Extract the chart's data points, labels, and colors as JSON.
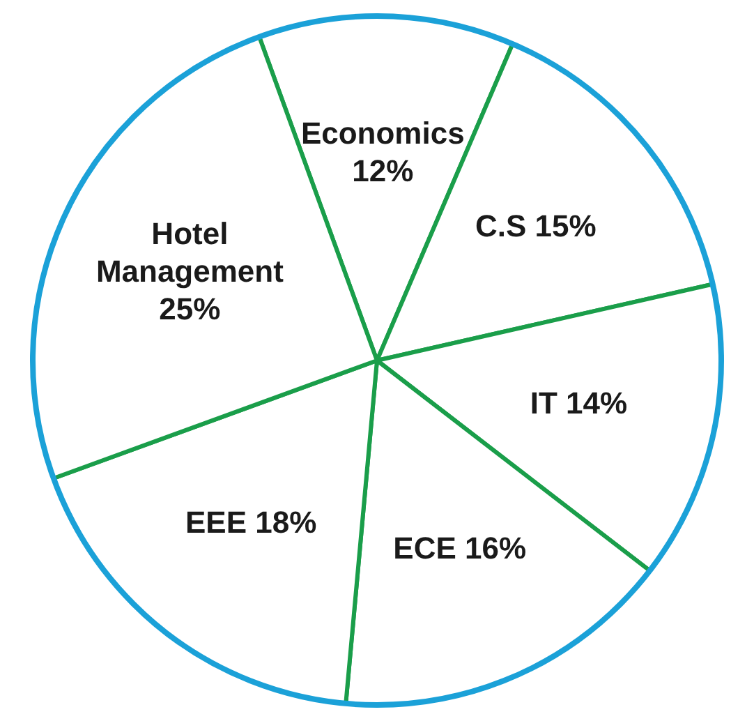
{
  "chart_data": {
    "type": "pie",
    "categories": [
      "Economics",
      "C.S",
      "IT",
      "ECE",
      "EEE",
      "Hotel Management"
    ],
    "values": [
      12,
      15,
      14,
      16,
      18,
      25
    ],
    "value_labels": [
      "12%",
      "15%",
      "14%",
      "16%",
      "18%",
      "25%"
    ],
    "colors": [
      "#ffffff",
      "#ffffff",
      "#ffffff",
      "#ffffff",
      "#ffffff",
      "#ffffff"
    ],
    "legend": false
  }
}
